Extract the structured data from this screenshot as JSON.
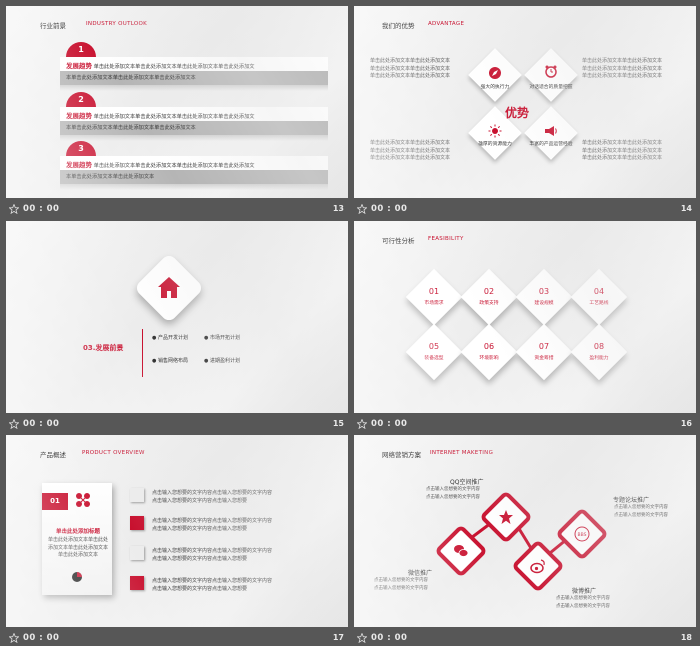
{
  "footer": {
    "time": "00 : 00"
  },
  "slides": [
    {
      "number": "13",
      "title_cn": "行业前景",
      "title_en": "INDUSTRY OUTLOOK",
      "rows": [
        {
          "num": "1",
          "label": "发展趋势",
          "line1": "单击此处添加文本单击此处添加文本单击此处添加文本单击此处添加文",
          "line2": "本单击此处添加文本单击此处添加文本单击此处添加文本"
        },
        {
          "num": "2",
          "label": "发展趋势",
          "line1": "单击此处添加文本单击此处添加文本单击此处添加文本单击此处添加文",
          "line2": "本单击此处添加文本单击此处添加文本单击此处添加文本"
        },
        {
          "num": "3",
          "label": "发展趋势",
          "line1": "单击此处添加文本单击此处添加文本单击此处添加文本单击此处添加文",
          "line2": "本单击此处添加文本单击此处添加文本"
        }
      ]
    },
    {
      "number": "14",
      "title_cn": "我们的优势",
      "title_en": "ADVANTAGE",
      "center": "优势",
      "items": [
        {
          "label": "强大的执行力"
        },
        {
          "label": "对话适合的质量把握"
        },
        {
          "label": "雄厚的资源能力"
        },
        {
          "label": "丰富的产品运营经验"
        }
      ],
      "left_text_top": [
        "单击此处添加文本单击此处添加文本",
        "单击此处添加文本单击此处添加文本",
        "单击此处添加文本单击此处添加文本"
      ],
      "right_text_top": [
        "单击此处添加文本单击此处添加文本",
        "单击此处添加文本单击此处添加文本",
        "单击此处添加文本单击此处添加文本"
      ],
      "left_text_bot": [
        "单击此处添加文本单击此处添加文本",
        "单击此处添加文本单击此处添加文本",
        "单击此处添加文本单击此处添加文本"
      ],
      "right_text_bot": [
        "单击此处添加文本单击此处添加文本",
        "单击此处添加文本单击此处添加文本",
        "单击此处添加文本单击此处添加文本"
      ]
    },
    {
      "number": "15",
      "section": "03.发展前景",
      "bullets": [
        "产品开发计划",
        "市场开拓计划",
        "销售网络布局",
        "进期盈利计划"
      ]
    },
    {
      "number": "16",
      "title_cn": "可行性分析",
      "title_en": "FEASIBILITY",
      "boxes": [
        {
          "num": "01",
          "label": "市场需求"
        },
        {
          "num": "02",
          "label": "政策支持"
        },
        {
          "num": "03",
          "label": "建设规模"
        },
        {
          "num": "04",
          "label": "工艺路线"
        },
        {
          "num": "05",
          "label": "装备选型"
        },
        {
          "num": "06",
          "label": "环境影响"
        },
        {
          "num": "07",
          "label": "资金筹措"
        },
        {
          "num": "08",
          "label": "盈利能力"
        }
      ]
    },
    {
      "number": "17",
      "title_cn": "产品概述",
      "title_en": "PRODUCT OVERVIEW",
      "card": {
        "num": "01",
        "heading": "单击此处添加标题",
        "body": [
          "单击此处添加文本单击此处",
          "添加文本单击此处添加文本",
          "单击此处添加文本"
        ]
      },
      "rows": [
        {
          "line1": "点击输入您想要的文字内容点击输入您想要的文字内容",
          "line2": "点击输入您想要的文字内容点击输入您想要"
        },
        {
          "line1": "点击输入您想要的文字内容点击输入您想要的文字内容",
          "line2": "点击输入您想要的文字内容点击输入您想要"
        },
        {
          "line1": "点击输入您想要的文字内容点击输入您想要的文字内容",
          "line2": "点击输入您想要的文字内容点击输入您想要"
        },
        {
          "line1": "点击输入您想要的文字内容点击输入您想要的文字内容",
          "line2": "点击输入您想要的文字内容点击输入您想要"
        }
      ]
    },
    {
      "number": "18",
      "title_cn": "网络营销方案",
      "title_en": "INTERNET MAKETING",
      "nodes": [
        {
          "title": "QQ空间推广",
          "l1": "点击输入您想要的文字内容",
          "l2": "点击输入您想要的文字内容"
        },
        {
          "title": "微信推广",
          "l1": "点击输入您想要的文字内容",
          "l2": "点击输入您想要的文字内容"
        },
        {
          "title": "微博推广",
          "l1": "点击输入您想要的文字内容",
          "l2": "点击输入您想要的文字内容"
        },
        {
          "title": "专题论坛推广",
          "l1": "点击输入您想要的文字内容",
          "l2": "点击输入您想要的文字内容"
        }
      ],
      "bbs": "BBS"
    }
  ]
}
